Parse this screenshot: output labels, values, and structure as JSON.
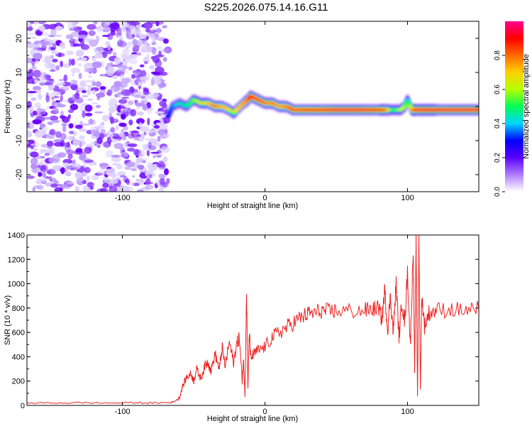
{
  "title": "S225.2026.075.14.16.G11",
  "chart_data": [
    {
      "type": "heatmap",
      "xlabel": "Height of straight line (km)",
      "ylabel": "Frequency (Hz)",
      "xlim": [
        -167,
        150
      ],
      "ylim": [
        -25,
        25
      ],
      "xticks": [
        -100,
        0,
        100
      ],
      "yticks": [
        -20,
        -10,
        0,
        10,
        20
      ],
      "colorbar": {
        "label": "Normalized spectral amplitude",
        "range": [
          0,
          1
        ],
        "ticks": [
          0.0,
          0.2,
          0.4,
          0.6,
          0.8
        ],
        "colors": [
          "#ffffff",
          "#b07cff",
          "#5a00ff",
          "#0000ff",
          "#00d4ff",
          "#00ff55",
          "#b6ff00",
          "#ffd000",
          "#ff6a00",
          "#ff0000",
          "#ff0090"
        ]
      },
      "ridge": {
        "x": [
          -68,
          -65,
          -60,
          -55,
          -50,
          -45,
          -40,
          -35,
          -30,
          -25,
          -22,
          -20,
          -15,
          -12,
          -10,
          -5,
          0,
          5,
          10,
          15,
          20,
          30,
          40,
          50,
          60,
          70,
          80,
          85,
          90,
          95,
          98,
          100,
          103,
          105,
          110,
          115,
          120,
          130,
          140,
          150
        ],
        "y": [
          -3,
          0,
          1,
          0,
          2,
          1,
          1,
          0,
          0,
          -1,
          -2,
          -1,
          1,
          2,
          3,
          2,
          1,
          1,
          0,
          0,
          -1,
          -1,
          -1,
          -1,
          -1,
          -1,
          -1,
          -1,
          -1,
          -1,
          0,
          2,
          -1,
          -1,
          -1,
          -1,
          -1,
          -1,
          -1,
          -1
        ],
        "amplitude": [
          0.3,
          0.35,
          0.45,
          0.45,
          0.55,
          0.65,
          0.7,
          0.8,
          0.75,
          0.7,
          0.5,
          0.7,
          0.75,
          0.8,
          0.9,
          0.85,
          0.8,
          0.8,
          0.75,
          0.8,
          0.85,
          0.9,
          0.9,
          0.95,
          0.95,
          0.95,
          0.9,
          0.85,
          0.5,
          0.6,
          0.6,
          0.4,
          0.7,
          0.9,
          0.95,
          0.95,
          0.95,
          0.95,
          0.95,
          0.95
        ]
      },
      "noise_region": [
        -167,
        -68
      ]
    },
    {
      "type": "line",
      "xlabel": "Height of straight line (km)",
      "ylabel": "SNR (10 * v/v)",
      "xlim": [
        -167,
        150
      ],
      "ylim": [
        0,
        1400
      ],
      "xticks": [
        -100,
        0,
        100
      ],
      "yticks": [
        0,
        200,
        400,
        600,
        800,
        1000,
        1200,
        1400
      ],
      "color": "#ee2222",
      "series": [
        {
          "x": [
            -167,
            -150,
            -130,
            -110,
            -90,
            -80,
            -70,
            -65,
            -60,
            -58,
            -55,
            -52,
            -50,
            -48,
            -45,
            -42,
            -40,
            -38,
            -35,
            -32,
            -30,
            -28,
            -25,
            -22,
            -20,
            -18,
            -16,
            -15,
            -14,
            -13,
            -12,
            -11,
            -10,
            -8,
            -5,
            0,
            5,
            10,
            15,
            20,
            25,
            30,
            35,
            40,
            45,
            50,
            60,
            70,
            75,
            80,
            82,
            84,
            86,
            88,
            90,
            92,
            94,
            96,
            98,
            100,
            102,
            104,
            105,
            106,
            107,
            108,
            109,
            110,
            112,
            115,
            120,
            130,
            140,
            150
          ],
          "y": [
            20,
            20,
            22,
            20,
            22,
            20,
            22,
            25,
            60,
            150,
            230,
            260,
            200,
            300,
            220,
            330,
            360,
            280,
            420,
            300,
            480,
            320,
            520,
            350,
            500,
            560,
            200,
            380,
            80,
            950,
            150,
            600,
            380,
            420,
            450,
            480,
            560,
            600,
            640,
            680,
            720,
            750,
            760,
            780,
            770,
            780,
            775,
            780,
            790,
            800,
            700,
            950,
            620,
            900,
            600,
            1000,
            560,
            850,
            680,
            1100,
            480,
            1300,
            250,
            1350,
            80,
            1400,
            120,
            900,
            650,
            760,
            780,
            790,
            780,
            790
          ]
        }
      ]
    }
  ]
}
